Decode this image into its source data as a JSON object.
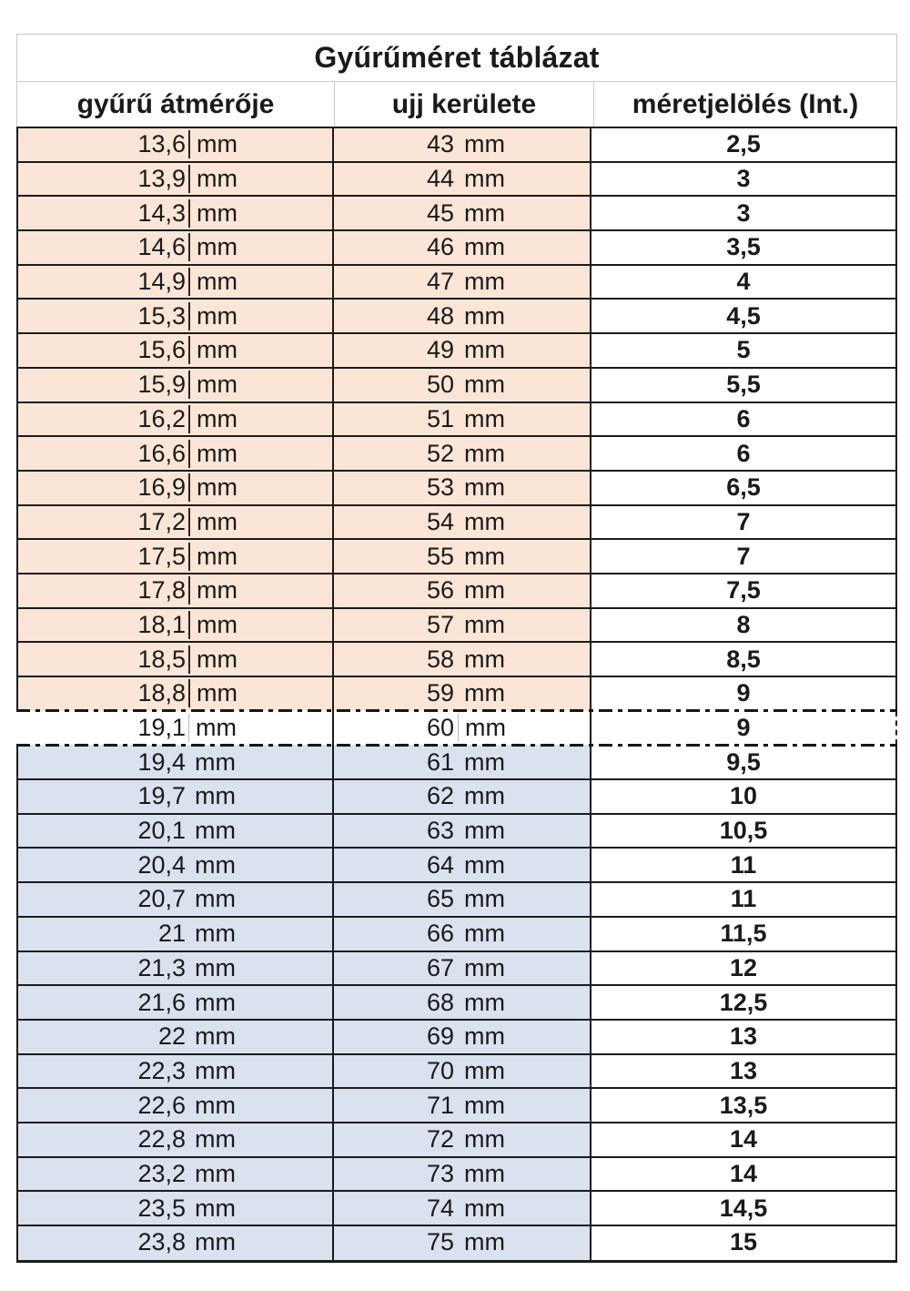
{
  "title": "Gyűrűméret táblázat",
  "unit": "mm",
  "columns": {
    "diameter": "gyűrű átmérője",
    "circumference": "ujj kerülete",
    "size": "méretjelölés (Int.)"
  },
  "colors": {
    "band_peach": "#fbe5d6",
    "band_blue": "#d9e2ee",
    "border_dark": "#1b1b1b",
    "border_light": "#c9c9c9"
  },
  "rows": [
    {
      "diameter": "13,6",
      "circumference": "43",
      "size": "2,5",
      "band": "peach"
    },
    {
      "diameter": "13,9",
      "circumference": "44",
      "size": "3",
      "band": "peach"
    },
    {
      "diameter": "14,3",
      "circumference": "45",
      "size": "3",
      "band": "peach"
    },
    {
      "diameter": "14,6",
      "circumference": "46",
      "size": "3,5",
      "band": "peach"
    },
    {
      "diameter": "14,9",
      "circumference": "47",
      "size": "4",
      "band": "peach"
    },
    {
      "diameter": "15,3",
      "circumference": "48",
      "size": "4,5",
      "band": "peach"
    },
    {
      "diameter": "15,6",
      "circumference": "49",
      "size": "5",
      "band": "peach"
    },
    {
      "diameter": "15,9",
      "circumference": "50",
      "size": "5,5",
      "band": "peach"
    },
    {
      "diameter": "16,2",
      "circumference": "51",
      "size": "6",
      "band": "peach"
    },
    {
      "diameter": "16,6",
      "circumference": "52",
      "size": "6",
      "band": "peach"
    },
    {
      "diameter": "16,9",
      "circumference": "53",
      "size": "6,5",
      "band": "peach"
    },
    {
      "diameter": "17,2",
      "circumference": "54",
      "size": "7",
      "band": "peach"
    },
    {
      "diameter": "17,5",
      "circumference": "55",
      "size": "7",
      "band": "peach"
    },
    {
      "diameter": "17,8",
      "circumference": "56",
      "size": "7,5",
      "band": "peach"
    },
    {
      "diameter": "18,1",
      "circumference": "57",
      "size": "8",
      "band": "peach"
    },
    {
      "diameter": "18,5",
      "circumference": "58",
      "size": "8,5",
      "band": "peach"
    },
    {
      "diameter": "18,8",
      "circumference": "59",
      "size": "9",
      "band": "peach"
    },
    {
      "diameter": "19,1",
      "circumference": "60",
      "size": "9",
      "band": "white"
    },
    {
      "diameter": "19,4",
      "circumference": "61",
      "size": "9,5",
      "band": "blue"
    },
    {
      "diameter": "19,7",
      "circumference": "62",
      "size": "10",
      "band": "blue"
    },
    {
      "diameter": "20,1",
      "circumference": "63",
      "size": "10,5",
      "band": "blue"
    },
    {
      "diameter": "20,4",
      "circumference": "64",
      "size": "11",
      "band": "blue"
    },
    {
      "diameter": "20,7",
      "circumference": "65",
      "size": "11",
      "band": "blue"
    },
    {
      "diameter": "21",
      "circumference": "66",
      "size": "11,5",
      "band": "blue"
    },
    {
      "diameter": "21,3",
      "circumference": "67",
      "size": "12",
      "band": "blue"
    },
    {
      "diameter": "21,6",
      "circumference": "68",
      "size": "12,5",
      "band": "blue"
    },
    {
      "diameter": "22",
      "circumference": "69",
      "size": "13",
      "band": "blue"
    },
    {
      "diameter": "22,3",
      "circumference": "70",
      "size": "13",
      "band": "blue"
    },
    {
      "diameter": "22,6",
      "circumference": "71",
      "size": "13,5",
      "band": "blue"
    },
    {
      "diameter": "22,8",
      "circumference": "72",
      "size": "14",
      "band": "blue"
    },
    {
      "diameter": "23,2",
      "circumference": "73",
      "size": "14",
      "band": "blue"
    },
    {
      "diameter": "23,5",
      "circumference": "74",
      "size": "14,5",
      "band": "blue"
    },
    {
      "diameter": "23,8",
      "circumference": "75",
      "size": "15",
      "band": "blue"
    }
  ]
}
